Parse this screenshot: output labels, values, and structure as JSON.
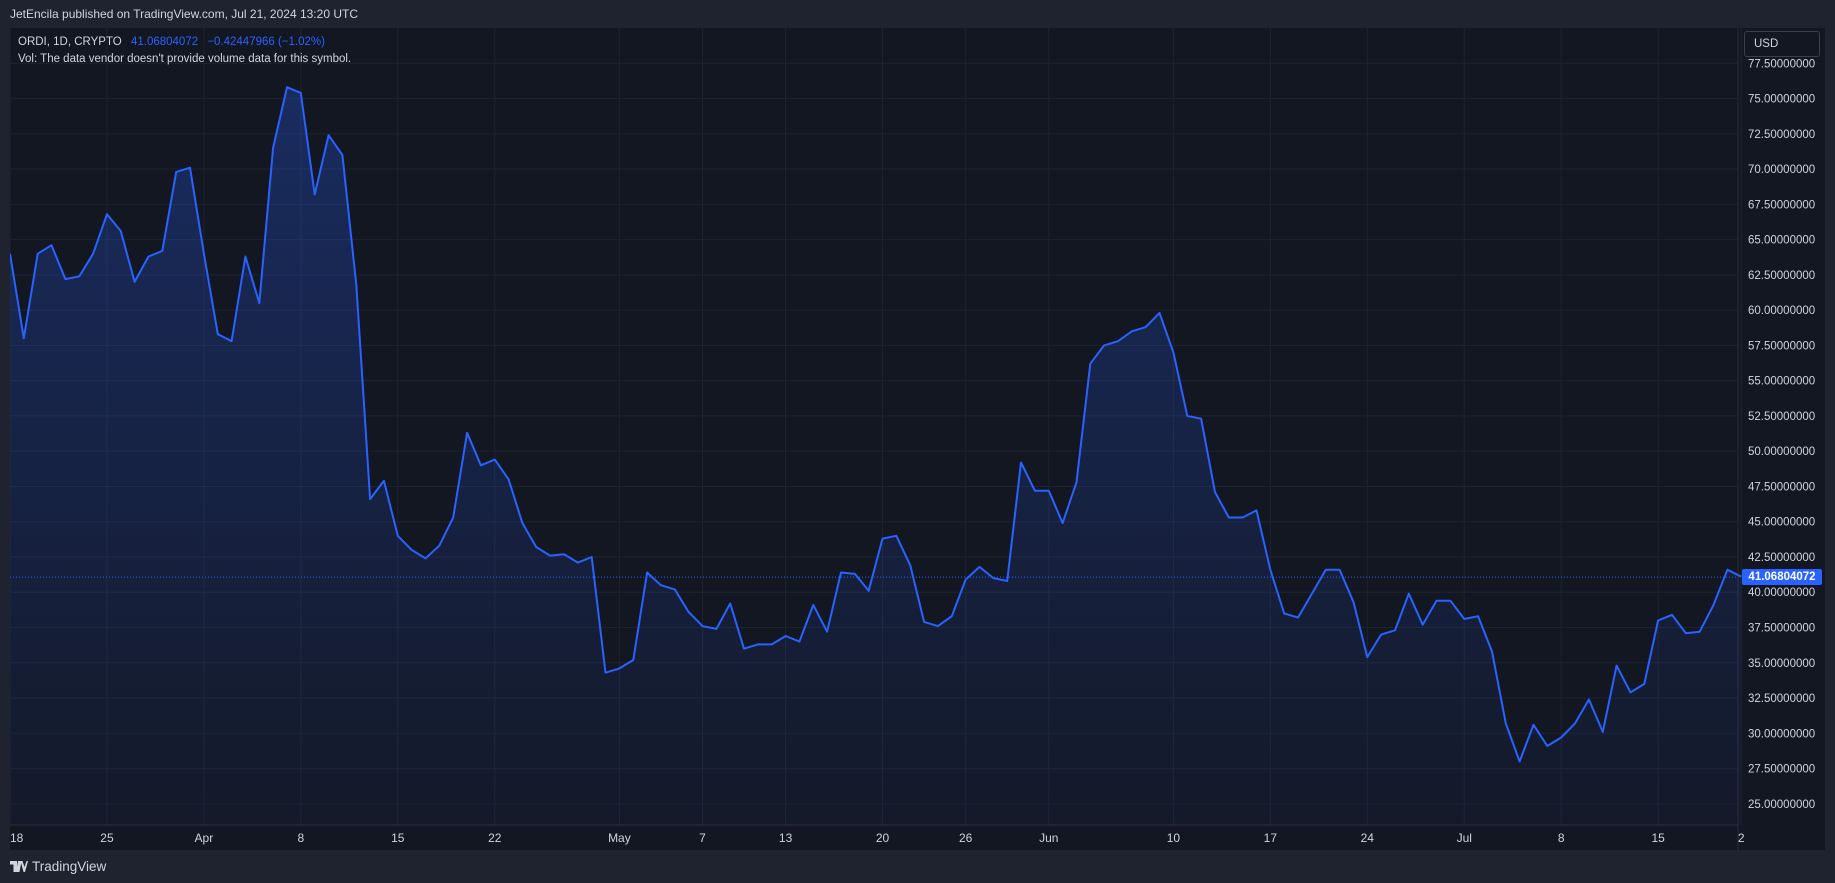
{
  "header": {
    "publisher_line": "JetEncila published on TradingView.com, Jul 21, 2024 13:20 UTC"
  },
  "legend": {
    "symbol": "ORDI, 1D, CRYPTO",
    "last_value": "41.06804072",
    "change": "−0.42447966 (−1.02%)",
    "volume_note": "Vol: The data vendor doesn't provide volume data for this symbol."
  },
  "currency_button": "USD",
  "last_price_tag": "41.06804072",
  "footer": {
    "brand": "TradingView"
  },
  "colors": {
    "line": "#2962ff",
    "background": "#131722",
    "grid": "#1e2330",
    "text": "#d1d4dc"
  },
  "icons": [
    "tradingview-logo-icon"
  ],
  "chart_data": {
    "type": "area",
    "title": "ORDI, 1D, CRYPTO",
    "ylim": [
      23.5,
      80.0
    ],
    "y_ticks": [
      25,
      27.5,
      30,
      32.5,
      35,
      37.5,
      40,
      42.5,
      45,
      47.5,
      50,
      52.5,
      55,
      57.5,
      60,
      62.5,
      65,
      67.5,
      70,
      72.5,
      75,
      77.5
    ],
    "y_tick_labels": [
      "25.00000000",
      "27.50000000",
      "30.00000000",
      "32.50000000",
      "35.00000000",
      "37.50000000",
      "40.00000000",
      "42.50000000",
      "45.00000000",
      "47.50000000",
      "50.00000000",
      "52.50000000",
      "55.00000000",
      "57.50000000",
      "60.00000000",
      "62.50000000",
      "65.00000000",
      "67.50000000",
      "70.00000000",
      "72.50000000",
      "75.00000000",
      "77.50000000"
    ],
    "x_ticks": [
      {
        "label": "18",
        "day": 0
      },
      {
        "label": "25",
        "day": 7
      },
      {
        "label": "Apr",
        "day": 14
      },
      {
        "label": "8",
        "day": 21
      },
      {
        "label": "15",
        "day": 28
      },
      {
        "label": "22",
        "day": 35
      },
      {
        "label": "May",
        "day": 44
      },
      {
        "label": "7",
        "day": 50
      },
      {
        "label": "13",
        "day": 56
      },
      {
        "label": "20",
        "day": 63
      },
      {
        "label": "26",
        "day": 69
      },
      {
        "label": "Jun",
        "day": 75
      },
      {
        "label": "10",
        "day": 84
      },
      {
        "label": "17",
        "day": 91
      },
      {
        "label": "24",
        "day": 98
      },
      {
        "label": "Jul",
        "day": 105
      },
      {
        "label": "8",
        "day": 112
      },
      {
        "label": "15",
        "day": 119
      },
      {
        "label": "2",
        "day": 125
      }
    ],
    "x_start": "2024-03-18",
    "x_end": "2024-07-21",
    "grid": true,
    "last_price": 41.06804072,
    "series": [
      {
        "values": [
          64.0,
          58.0,
          64.0,
          64.6,
          62.2,
          62.4,
          64.0,
          66.8,
          65.6,
          62.0,
          63.8,
          64.2,
          69.8,
          70.1,
          64.0,
          58.3,
          57.8,
          63.8,
          60.5,
          71.5,
          75.8,
          75.4,
          68.2,
          72.4,
          71.0,
          61.8,
          46.6,
          47.9,
          44.0,
          43.0,
          42.4,
          43.3,
          45.3,
          51.3,
          49.0,
          49.4,
          48.0,
          44.9,
          43.2,
          42.6,
          42.7,
          42.1,
          42.5,
          34.3,
          34.6,
          35.2,
          41.4,
          40.5,
          40.2,
          38.6,
          37.6,
          37.4,
          39.2,
          36.0,
          36.3,
          36.3,
          36.9,
          36.5,
          39.1,
          37.2,
          41.4,
          41.3,
          40.1,
          43.8,
          44.0,
          41.9,
          37.9,
          37.6,
          38.3,
          40.9,
          41.8,
          41.0,
          40.8,
          49.2,
          47.2,
          47.2,
          44.9,
          47.8,
          56.2,
          57.5,
          57.8,
          58.5,
          58.8,
          59.8,
          57.0,
          52.5,
          52.3,
          47.1,
          45.3,
          45.3,
          45.8,
          41.6,
          38.5,
          38.2,
          39.9,
          41.6,
          41.6,
          39.3,
          35.4,
          37.0,
          37.3,
          39.9,
          37.7,
          39.4,
          39.4,
          38.1,
          38.3,
          35.8,
          30.7,
          28.0,
          30.6,
          29.1,
          29.7,
          30.7,
          32.4,
          30.1,
          34.8,
          32.9,
          33.5,
          38.0,
          38.4,
          37.1,
          37.2,
          39.1,
          41.6,
          41.1
        ]
      }
    ]
  }
}
